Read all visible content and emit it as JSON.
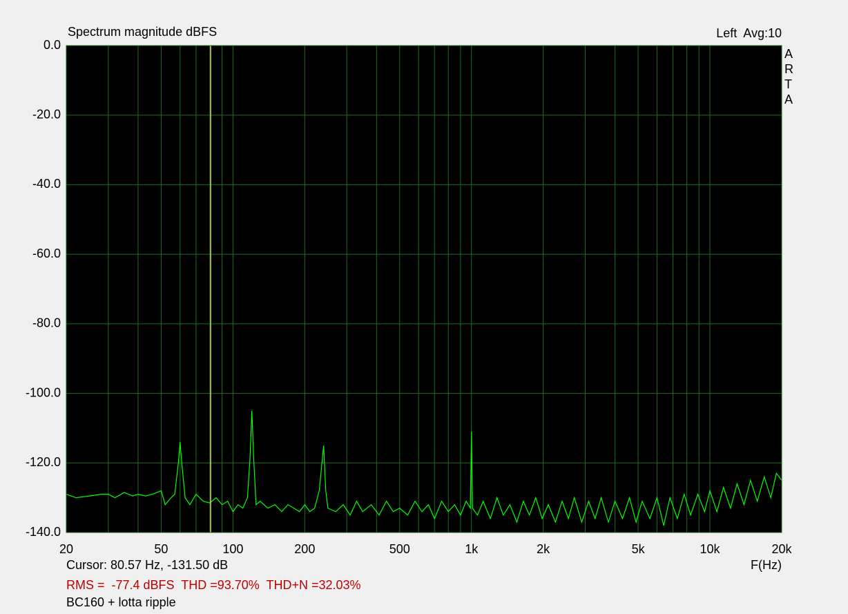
{
  "chart_data": {
    "type": "line",
    "title": "Spectrum magnitude dBFS",
    "channel_label": "Left  Avg:10",
    "watermark": "ARTA",
    "xlabel": "F(Hz)",
    "cursor": {
      "x": 80.57,
      "y": -131.5,
      "label": "Cursor: 80.57 Hz, -131.50 dB",
      "color": "#d4d46a"
    },
    "stats": "RMS =  -77.4 dBFS  THD =93.70%  THD+N =32.03%",
    "caption": "BC160 + lotta ripple",
    "xscale": "log",
    "grid": true,
    "xlim": [
      20,
      20000
    ],
    "ylim": [
      -140,
      0
    ],
    "xticks": [
      20,
      50,
      100,
      200,
      500,
      {
        "value": 1000,
        "label": "1k"
      },
      {
        "value": 2000,
        "label": "2k"
      },
      {
        "value": 5000,
        "label": "5k"
      },
      {
        "value": 10000,
        "label": "10k"
      },
      {
        "value": 20000,
        "label": "20k"
      }
    ],
    "xminorticks": [
      30,
      40,
      60,
      70,
      80,
      90,
      300,
      400,
      600,
      700,
      800,
      900,
      3000,
      4000,
      6000,
      7000,
      8000,
      9000
    ],
    "yticks": [
      {
        "value": 0,
        "label": "0.0"
      },
      {
        "value": -20,
        "label": "-20.0"
      },
      {
        "value": -40,
        "label": "-40.0"
      },
      {
        "value": -60,
        "label": "-60.0"
      },
      {
        "value": -80,
        "label": "-80.0"
      },
      {
        "value": -100,
        "label": "-100.0"
      },
      {
        "value": -120,
        "label": "-120.0"
      },
      {
        "value": -140,
        "label": "-140.0"
      }
    ],
    "series": [
      {
        "color": "#00ff00",
        "x": [
          20,
          22,
          25,
          28,
          30,
          32,
          35,
          38,
          40,
          43,
          46,
          50,
          52,
          55,
          57,
          59,
          60,
          61,
          63,
          66,
          70,
          75,
          80,
          85,
          90,
          95,
          100,
          105,
          110,
          115,
          118,
          120,
          122,
          125,
          130,
          140,
          150,
          160,
          170,
          180,
          190,
          200,
          210,
          220,
          230,
          240,
          245,
          250,
          270,
          290,
          310,
          330,
          350,
          380,
          410,
          440,
          470,
          500,
          540,
          580,
          620,
          660,
          700,
          750,
          800,
          850,
          900,
          950,
          990,
          1000,
          1010,
          1060,
          1120,
          1200,
          1280,
          1360,
          1450,
          1550,
          1650,
          1750,
          1860,
          1980,
          2100,
          2250,
          2400,
          2550,
          2700,
          2900,
          3100,
          3300,
          3500,
          3750,
          4000,
          4300,
          4600,
          4900,
          5200,
          5600,
          6000,
          6400,
          6800,
          7300,
          7800,
          8300,
          8900,
          9500,
          10000,
          10700,
          11400,
          12200,
          13000,
          13900,
          14800,
          15800,
          16900,
          18000,
          19000,
          20000
        ],
        "values": [
          -129,
          -130,
          -129.5,
          -129,
          -129,
          -130,
          -128.5,
          -129.5,
          -129,
          -129.5,
          -129,
          -128,
          -132,
          -130,
          -129,
          -120,
          -114,
          -120,
          -130,
          -132,
          -129,
          -131,
          -131.5,
          -130,
          -132,
          -131,
          -134,
          -132,
          -133,
          -130,
          -118,
          -105,
          -118,
          -132,
          -131,
          -133,
          -132,
          -134,
          -132,
          -133,
          -134,
          -132,
          -134,
          -133,
          -128,
          -115,
          -128,
          -133,
          -134,
          -132,
          -135,
          -131,
          -134,
          -132,
          -135,
          -131,
          -134,
          -133,
          -135,
          -131,
          -134,
          -132,
          -136,
          -131,
          -134,
          -132,
          -135,
          -131,
          -133,
          -111,
          -133,
          -135,
          -131,
          -136,
          -130,
          -135,
          -132,
          -137,
          -131,
          -135,
          -130,
          -136,
          -132,
          -137,
          -131,
          -136,
          -130,
          -137,
          -131,
          -136,
          -130,
          -137,
          -131,
          -136,
          -130,
          -137,
          -131,
          -136,
          -130,
          -138,
          -130,
          -136,
          -129,
          -135,
          -129,
          -134,
          -128,
          -134,
          -127,
          -133,
          -126,
          -132,
          -125,
          -131,
          -124,
          -130,
          -123,
          -125
        ]
      }
    ]
  }
}
